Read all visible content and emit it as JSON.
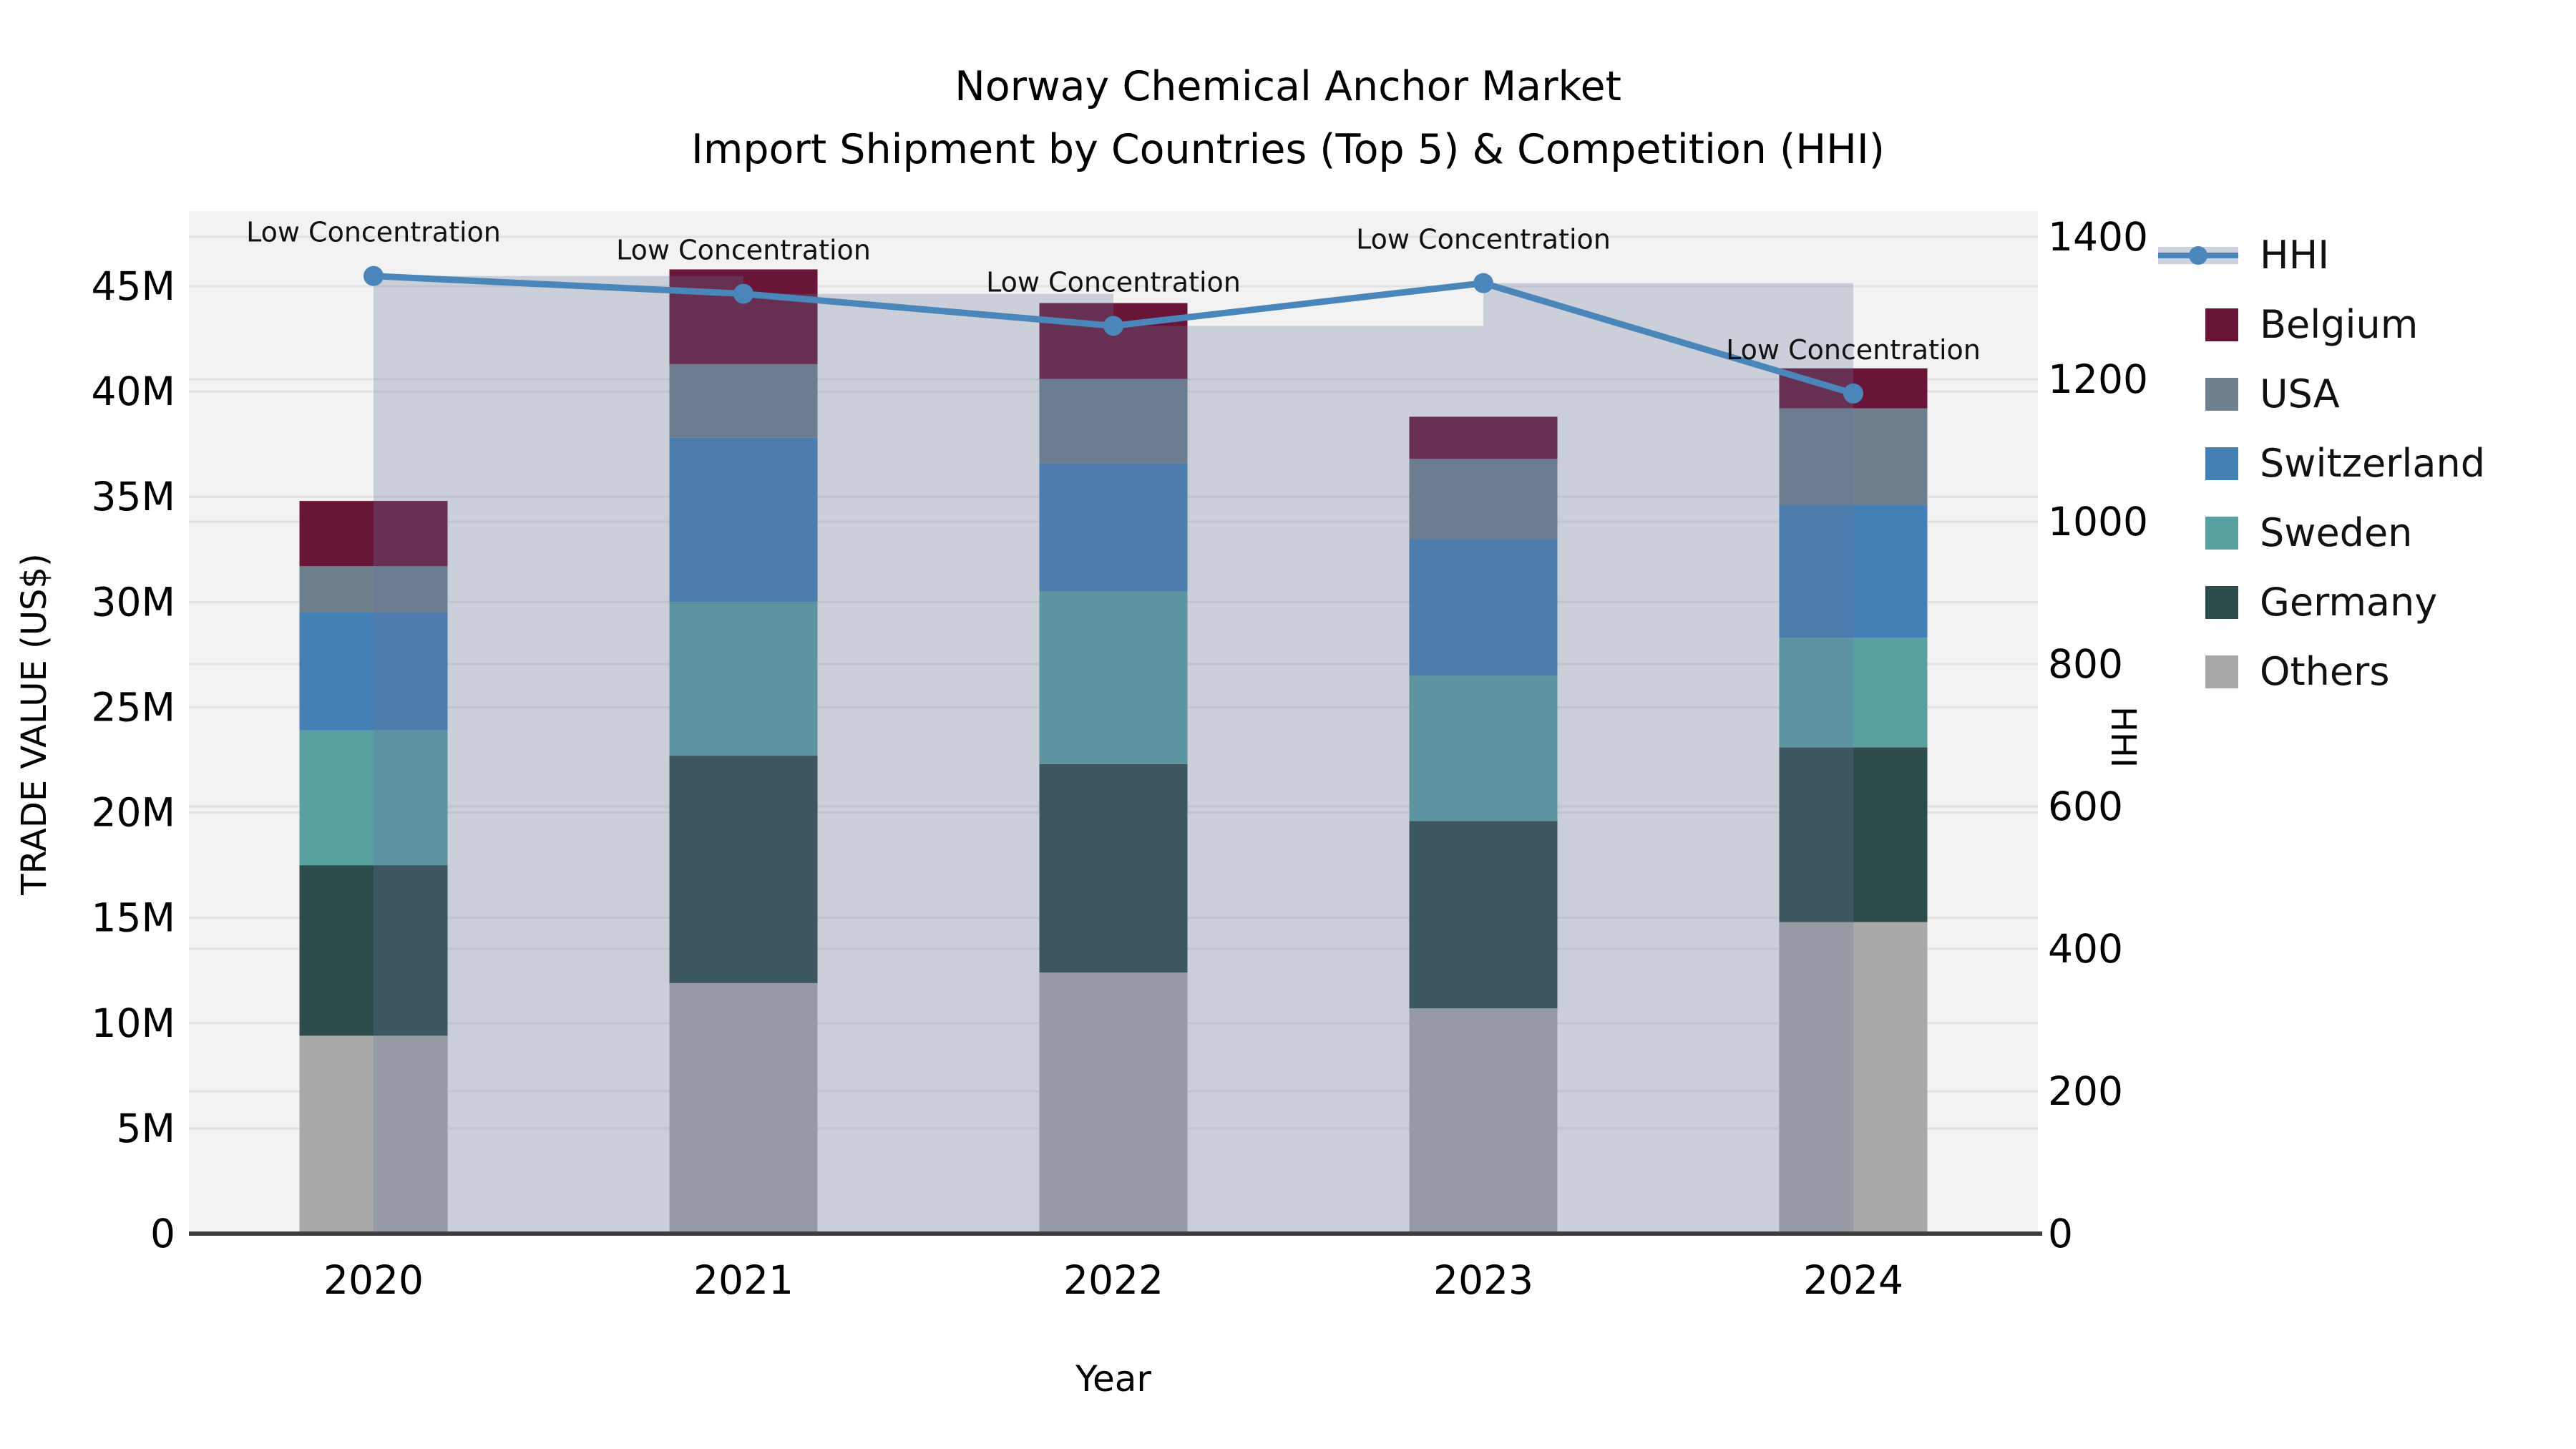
{
  "title": {
    "line1": "Norway Chemical Anchor Market",
    "line2": "Import Shipment by Countries (Top 5) & Competition (HHI)"
  },
  "axes": {
    "x_label": "Year",
    "y_left_label": "TRADE VALUE (US$)",
    "y_right_label": "HHI",
    "y_left_ticks": [
      "0",
      "5M",
      "10M",
      "15M",
      "20M",
      "25M",
      "30M",
      "35M",
      "40M",
      "45M"
    ],
    "y_right_ticks": [
      "0",
      "200",
      "400",
      "600",
      "800",
      "1000",
      "1200",
      "1400"
    ],
    "x_ticks": [
      "2020",
      "2021",
      "2022",
      "2023",
      "2024"
    ]
  },
  "legend": {
    "items": [
      {
        "label": "HHI",
        "type": "line",
        "color": "#4a86ba",
        "band_color": "#ccd1dd"
      },
      {
        "label": "Belgium",
        "type": "box",
        "color": "#681538"
      },
      {
        "label": "USA",
        "type": "box",
        "color": "#6e7f8d"
      },
      {
        "label": "Switzerland",
        "type": "box",
        "color": "#4480b5"
      },
      {
        "label": "Sweden",
        "type": "box",
        "color": "#59a0a1"
      },
      {
        "label": "Germany",
        "type": "box",
        "color": "#2e4c4b"
      },
      {
        "label": "Others",
        "type": "box",
        "color": "#a8a8a8"
      }
    ]
  },
  "chart_data": {
    "type": "bar+line",
    "title": "Norway Chemical Anchor Market — Import Shipment by Countries (Top 5) & Competition (HHI)",
    "xlabel": "Year",
    "ylabel_left": "TRADE VALUE (US$)",
    "ylabel_right": "HHI",
    "categories": [
      "2020",
      "2021",
      "2022",
      "2023",
      "2024"
    ],
    "stack_order_note": "series listed bottom-to-top of the stacked bars; values in millions US$",
    "series": [
      {
        "name": "Others",
        "color": "#a8a8a8",
        "values": [
          9.4,
          11.9,
          12.4,
          10.7,
          14.8
        ]
      },
      {
        "name": "Germany",
        "color": "#2e4c4b",
        "values": [
          8.1,
          10.8,
          9.9,
          8.9,
          8.3
        ]
      },
      {
        "name": "Sweden",
        "color": "#59a0a1",
        "values": [
          6.4,
          7.3,
          8.2,
          6.9,
          5.2
        ]
      },
      {
        "name": "Switzerland",
        "color": "#4480b5",
        "values": [
          5.6,
          7.8,
          6.1,
          6.5,
          6.3
        ]
      },
      {
        "name": "USA",
        "color": "#6e7f8d",
        "values": [
          2.2,
          3.5,
          4.0,
          3.8,
          4.6
        ]
      },
      {
        "name": "Belgium",
        "color": "#681538",
        "values": [
          3.1,
          4.5,
          3.6,
          2.0,
          1.9
        ]
      }
    ],
    "bar_totals": [
      34.8,
      45.8,
      44.2,
      38.8,
      41.1
    ],
    "line_series": {
      "name": "HHI",
      "axis": "right",
      "color": "#4a86ba",
      "values": [
        1345,
        1320,
        1275,
        1335,
        1180
      ],
      "band_fill": "rgba(99,118,156,0.28)",
      "band_note": "translucent band drawn from each year center to the next, top at that year's HHI value"
    },
    "point_annotations": [
      "Low Concentration",
      "Low Concentration",
      "Low Concentration",
      "Low Concentration",
      "Low Concentration"
    ],
    "ylim_left": [
      0,
      48.6
    ],
    "ylim_right": [
      0,
      1436
    ],
    "left_tick_step_millions": 5,
    "right_tick_step": 200,
    "grid": true,
    "legend_position": "right",
    "plot_bg": "#f2f2f2",
    "grid_color": "#e2e2e2",
    "axis_line_color": "#3d3d3d",
    "annotation_font_px": 38,
    "tick_font_px": 55
  }
}
